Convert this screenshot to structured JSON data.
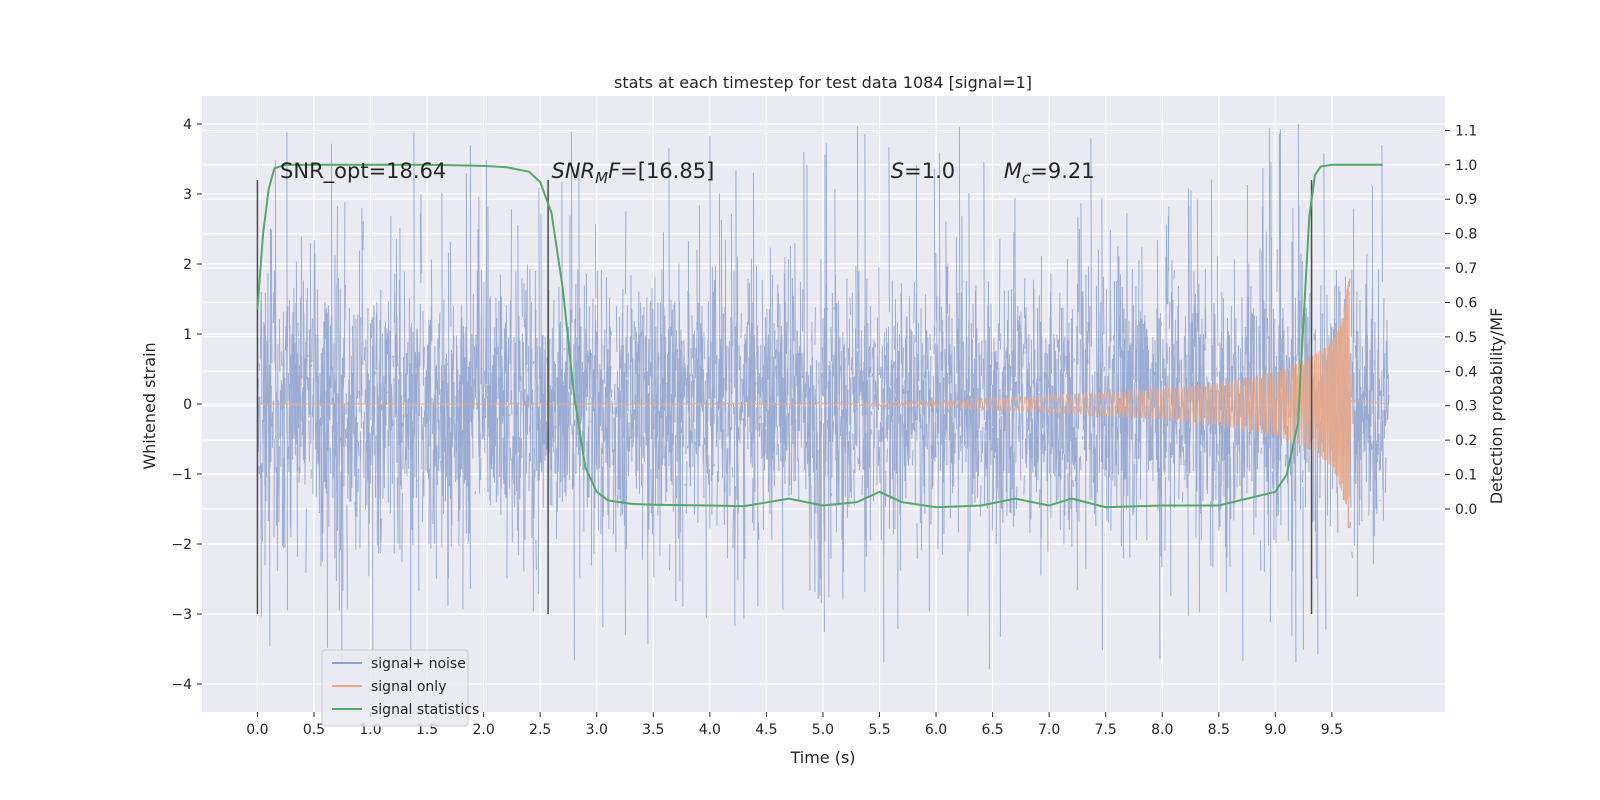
{
  "chart_data": {
    "type": "line",
    "title": "stats at each timestep for test data 1084 [signal=1]",
    "xlabel": "Time (s)",
    "ylabel": "Whitened strain",
    "y2label": "Detection probability/MF",
    "xlim": [
      -0.49,
      10.5
    ],
    "ylim": [
      -4.4,
      4.4
    ],
    "y2lim": [
      -0.59,
      1.2
    ],
    "xticks": [
      0.0,
      0.5,
      1.0,
      1.5,
      2.0,
      2.5,
      3.0,
      3.5,
      4.0,
      4.5,
      5.0,
      5.5,
      6.0,
      6.5,
      7.0,
      7.5,
      8.0,
      8.5,
      9.0,
      9.5
    ],
    "yticks": [
      -4,
      -3,
      -2,
      -1,
      0,
      1,
      2,
      3,
      4
    ],
    "y2ticks": [
      0.0,
      0.1,
      0.2,
      0.3,
      0.4,
      0.5,
      0.6,
      0.7,
      0.8,
      0.9,
      1.0,
      1.1
    ],
    "xticklabels": [
      "0.0",
      "0.5",
      "1.0",
      "1.5",
      "2.0",
      "2.5",
      "3.0",
      "3.5",
      "4.0",
      "4.5",
      "5.0",
      "5.5",
      "6.0",
      "6.5",
      "7.0",
      "7.5",
      "8.0",
      "8.5",
      "9.0",
      "9.5"
    ],
    "yticklabels": [
      "−4",
      "−3",
      "−2",
      "−1",
      "0",
      "1",
      "2",
      "3",
      "4"
    ],
    "y2ticklabels": [
      "0.0",
      "0.1",
      "0.2",
      "0.3",
      "0.4",
      "0.5",
      "0.6",
      "0.7",
      "0.8",
      "0.9",
      "1.0",
      "1.1"
    ],
    "grid": true,
    "legend_position": "lower-left",
    "series": [
      {
        "name": "signal+ noise",
        "color": "#8da0cb",
        "axis": "left",
        "x_range": [
          0.0,
          10.0
        ],
        "envelope_typical": [
          -1.9,
          2.0
        ],
        "envelope_extreme": [
          -3.85,
          4.05
        ]
      },
      {
        "name": "signal only",
        "color": "#e8a98a",
        "axis": "left",
        "x": [
          0.0,
          5.0,
          6.0,
          7.0,
          8.0,
          8.5,
          9.0,
          9.3,
          9.5,
          9.6,
          9.65,
          9.67,
          10.0
        ],
        "amplitude": [
          0.0,
          0.01,
          0.05,
          0.12,
          0.22,
          0.3,
          0.45,
          0.65,
          0.9,
          1.3,
          1.85,
          0.05,
          0.0
        ]
      },
      {
        "name": "signal statistics",
        "color": "#55a868",
        "axis": "right",
        "x": [
          0.0,
          0.05,
          0.1,
          0.15,
          0.25,
          0.5,
          1.0,
          1.5,
          2.0,
          2.2,
          2.4,
          2.5,
          2.6,
          2.7,
          2.8,
          2.9,
          3.0,
          3.1,
          3.3,
          3.5,
          4.0,
          4.3,
          4.7,
          5.0,
          5.3,
          5.5,
          5.7,
          6.0,
          6.4,
          6.7,
          7.0,
          7.2,
          7.5,
          8.0,
          8.5,
          9.0,
          9.1,
          9.2,
          9.25,
          9.3,
          9.35,
          9.4,
          9.5,
          9.6,
          9.95
        ],
        "y": [
          0.58,
          0.8,
          0.93,
          0.99,
          1.0,
          1.0,
          1.0,
          1.0,
          0.997,
          0.993,
          0.98,
          0.95,
          0.86,
          0.64,
          0.33,
          0.12,
          0.05,
          0.025,
          0.015,
          0.012,
          0.01,
          0.008,
          0.03,
          0.01,
          0.02,
          0.05,
          0.02,
          0.005,
          0.01,
          0.03,
          0.01,
          0.03,
          0.005,
          0.01,
          0.01,
          0.05,
          0.1,
          0.25,
          0.55,
          0.85,
          0.97,
          0.995,
          1.0,
          1.0,
          1.0
        ]
      }
    ],
    "vlines": [
      0.0,
      2.57,
      9.32
    ],
    "vline_range": [
      -3.0,
      3.2
    ],
    "annotations": [
      {
        "x": 0.2,
        "y": 3.2,
        "parts": [
          {
            "t": "SNR_opt=18.64",
            "i": false
          }
        ]
      },
      {
        "x": 2.6,
        "y": 3.2,
        "parts": [
          {
            "t": "SNR",
            "i": true
          },
          {
            "t": "M",
            "i": true,
            "sub": true
          },
          {
            "t": "F",
            "i": true
          },
          {
            "t": "=[16.85]",
            "i": false
          }
        ]
      },
      {
        "x": 5.6,
        "y": 3.2,
        "parts": [
          {
            "t": "S",
            "i": true
          },
          {
            "t": "=1.0",
            "i": false
          }
        ]
      },
      {
        "x": 6.6,
        "y": 3.2,
        "parts": [
          {
            "t": "M",
            "i": true
          },
          {
            "t": "c",
            "i": true,
            "sub": true
          },
          {
            "t": "=9.21",
            "i": false
          }
        ]
      }
    ]
  }
}
